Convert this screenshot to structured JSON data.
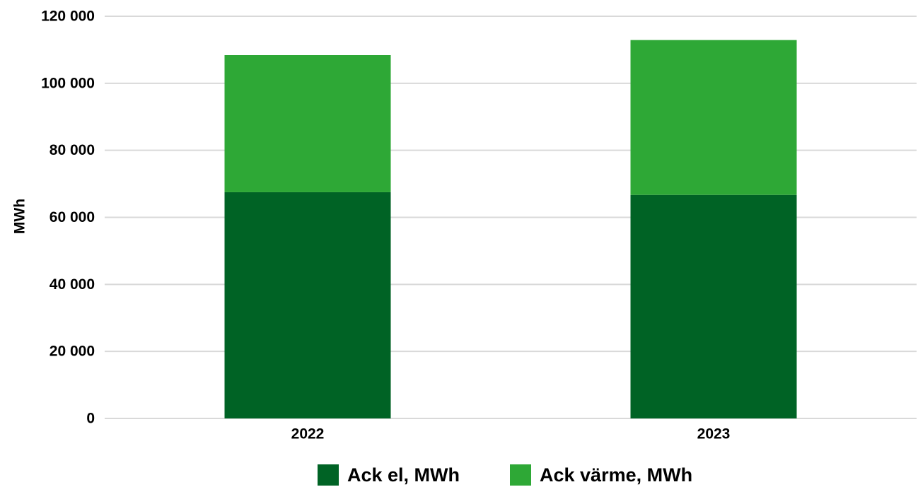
{
  "chart_data": {
    "type": "bar",
    "stacked": true,
    "categories": [
      "2022",
      "2023"
    ],
    "series": [
      {
        "name": "Ack el, MWh",
        "values": [
          67500,
          66700
        ],
        "color": "#006325"
      },
      {
        "name": "Ack värme, MWh",
        "values": [
          40900,
          46200
        ],
        "color": "#2ea836"
      }
    ],
    "title": "",
    "xlabel": "",
    "ylabel": "MWh",
    "ylim": [
      0,
      120000
    ],
    "yticks": [
      0,
      20000,
      40000,
      60000,
      80000,
      100000,
      120000
    ],
    "ytick_labels": [
      "0",
      "20 000",
      "40 000",
      "60 000",
      "80 000",
      "100 000",
      "120 000"
    ],
    "grid": true,
    "legend_position": "bottom"
  }
}
